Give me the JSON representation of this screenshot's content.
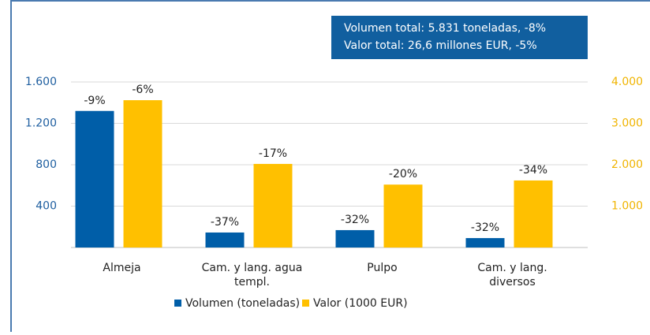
{
  "chart_data": {
    "type": "bar",
    "annotation_lines": [
      "Volumen total: 5.831 toneladas, -8%",
      "Valor total:  26,6 millones EUR, -5%"
    ],
    "categories": [
      [
        "Almeja"
      ],
      [
        "Cam. y lang. agua",
        "templ."
      ],
      [
        "Pulpo"
      ],
      [
        "Cam. y lang.",
        "diversos"
      ]
    ],
    "series": [
      {
        "name": "Volumen (toneladas)",
        "color": "#005ea8",
        "values": [
          1320,
          145,
          168,
          91
        ],
        "changes": [
          "-9%",
          "-37%",
          "-32%",
          "-32%"
        ]
      },
      {
        "name": "Valor (1000 EUR)",
        "color": "#ffc000",
        "axis": "y2",
        "values": [
          3560,
          2020,
          1520,
          1620
        ],
        "changes": [
          "-6%",
          "-17%",
          "-20%",
          "-34%"
        ]
      }
    ],
    "ylim": [
      0,
      1600
    ],
    "yticks": [
      400,
      800,
      {
        "value": 1200,
        "label": "1.200"
      },
      {
        "value": 1600,
        "label": "1.600"
      }
    ],
    "y2lim": [
      0,
      4000
    ],
    "y2ticks": [
      {
        "value": 1000,
        "label": "1.000"
      },
      {
        "value": 2000,
        "label": "2.000"
      },
      {
        "value": 3000,
        "label": "3.000"
      },
      {
        "value": 4000,
        "label": "4.000"
      }
    ],
    "grid": true
  }
}
